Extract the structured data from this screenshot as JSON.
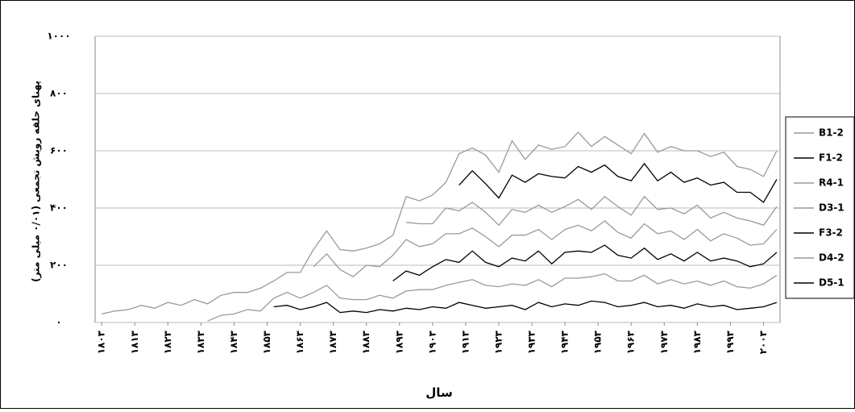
{
  "chart_data": {
    "type": "line",
    "stacked": true,
    "y_title": "پهنای حلقه رویش تجمعی (۰/۰۱ میلی متر)",
    "x_title": "سال",
    "x": [
      1803,
      1807,
      1811,
      1815,
      1819,
      1823,
      1827,
      1831,
      1835,
      1839,
      1843,
      1847,
      1851,
      1855,
      1859,
      1863,
      1867,
      1871,
      1875,
      1879,
      1883,
      1887,
      1891,
      1895,
      1899,
      1903,
      1907,
      1911,
      1915,
      1919,
      1923,
      1927,
      1931,
      1935,
      1939,
      1943,
      1947,
      1951,
      1955,
      1959,
      1963,
      1967,
      1971,
      1975,
      1979,
      1983,
      1987,
      1991,
      1995,
      1999,
      2003,
      2007
    ],
    "xlim": [
      1801,
      2008
    ],
    "xticks": [
      {
        "value": 1803,
        "label": "۱۸۰۳"
      },
      {
        "value": 1813,
        "label": "۱۸۱۳"
      },
      {
        "value": 1823,
        "label": "۱۸۲۳"
      },
      {
        "value": 1833,
        "label": "۱۸۳۳"
      },
      {
        "value": 1843,
        "label": "۱۸۴۳"
      },
      {
        "value": 1853,
        "label": "۱۸۵۳"
      },
      {
        "value": 1863,
        "label": "۱۸۶۳"
      },
      {
        "value": 1873,
        "label": "۱۸۷۳"
      },
      {
        "value": 1883,
        "label": "۱۸۸۳"
      },
      {
        "value": 1893,
        "label": "۱۸۹۳"
      },
      {
        "value": 1903,
        "label": "۱۹۰۳"
      },
      {
        "value": 1913,
        "label": "۱۹۱۳"
      },
      {
        "value": 1923,
        "label": "۱۹۲۳"
      },
      {
        "value": 1933,
        "label": "۱۹۳۳"
      },
      {
        "value": 1943,
        "label": "۱۹۴۳"
      },
      {
        "value": 1953,
        "label": "۱۹۵۳"
      },
      {
        "value": 1963,
        "label": "۱۹۶۳"
      },
      {
        "value": 1973,
        "label": "۱۹۷۳"
      },
      {
        "value": 1983,
        "label": "۱۹۸۳"
      },
      {
        "value": 1993,
        "label": "۱۹۹۳"
      },
      {
        "value": 2003,
        "label": "۲۰۰۳"
      }
    ],
    "ylim": [
      0,
      1000
    ],
    "yticks": [
      {
        "value": 0,
        "label": "۰"
      },
      {
        "value": 200,
        "label": "۲۰۰"
      },
      {
        "value": 400,
        "label": "۴۰۰"
      },
      {
        "value": 600,
        "label": "۶۰۰"
      },
      {
        "value": 800,
        "label": "۸۰۰"
      },
      {
        "value": 1000,
        "label": "۱۰۰۰"
      }
    ],
    "grid": true,
    "legend": "right",
    "series": [
      {
        "name": "B1-2",
        "color": "#9a9a9a",
        "values": [
          30,
          40,
          45,
          60,
          50,
          70,
          60,
          80,
          60,
          70,
          75,
          60,
          80,
          60,
          70,
          90,
          60,
          80,
          70,
          90,
          60,
          80,
          70,
          90,
          80,
          100,
          90,
          110,
          80,
          100,
          90,
          120,
          80,
          100,
          95,
          110,
          120,
          90,
          100,
          110,
          95,
          105,
          100,
          90,
          110,
          95,
          100,
          105,
          90,
          80,
          90,
          100
        ]
      },
      {
        "name": "F1-2",
        "color": "#000000",
        "values": [
          null,
          null,
          null,
          null,
          null,
          null,
          null,
          null,
          null,
          null,
          null,
          null,
          null,
          null,
          null,
          null,
          null,
          null,
          null,
          null,
          null,
          null,
          null,
          null,
          null,
          null,
          null,
          90,
          110,
          100,
          95,
          120,
          105,
          110,
          125,
          100,
          115,
          130,
          110,
          105,
          120,
          115,
          100,
          125,
          110,
          95,
          115,
          105,
          90,
          100,
          80,
          95
        ]
      },
      {
        "name": "R4-1",
        "color": "#9a9a9a",
        "values": [
          null,
          null,
          null,
          null,
          null,
          null,
          null,
          null,
          null,
          null,
          null,
          null,
          null,
          null,
          null,
          null,
          null,
          null,
          null,
          null,
          null,
          null,
          null,
          60,
          80,
          70,
          90,
          80,
          90,
          85,
          75,
          90,
          80,
          85,
          95,
          80,
          90,
          75,
          85,
          90,
          80,
          95,
          85,
          80,
          90,
          85,
          80,
          75,
          70,
          85,
          65,
          80
        ]
      },
      {
        "name": "D3-1",
        "color": "#9a9a9a",
        "values": [
          null,
          null,
          null,
          null,
          null,
          null,
          null,
          null,
          null,
          null,
          null,
          null,
          null,
          null,
          null,
          null,
          90,
          110,
          100,
          80,
          120,
          100,
          90,
          110,
          100,
          80,
          90,
          100,
          80,
          90,
          70,
          80,
          90,
          75,
          85,
          80,
          90,
          75,
          85,
          80,
          70,
          85,
          90,
          80,
          75,
          80,
          70,
          85,
          80,
          75,
          70,
          80
        ]
      },
      {
        "name": "F3-2",
        "color": "#000000",
        "values": [
          null,
          null,
          null,
          null,
          null,
          null,
          null,
          null,
          null,
          null,
          null,
          null,
          null,
          null,
          null,
          null,
          null,
          null,
          null,
          null,
          null,
          null,
          60,
          70,
          50,
          80,
          90,
          70,
          100,
          80,
          70,
          90,
          85,
          100,
          80,
          90,
          95,
          85,
          100,
          90,
          80,
          95,
          85,
          90,
          80,
          100,
          85,
          80,
          90,
          75,
          70,
          80
        ]
      },
      {
        "name": "D4-2",
        "color": "#9a9a9a",
        "values": [
          null,
          null,
          null,
          null,
          null,
          null,
          null,
          null,
          5,
          25,
          30,
          45,
          40,
          30,
          45,
          40,
          50,
          60,
          50,
          40,
          45,
          50,
          45,
          60,
          70,
          60,
          80,
          70,
          90,
          80,
          70,
          75,
          85,
          80,
          70,
          90,
          95,
          85,
          100,
          90,
          85,
          95,
          80,
          90,
          85,
          80,
          75,
          85,
          80,
          70,
          80,
          95
        ]
      },
      {
        "name": "D5-1",
        "color": "#000000",
        "values": [
          null,
          null,
          null,
          null,
          null,
          null,
          null,
          null,
          null,
          null,
          null,
          null,
          null,
          55,
          60,
          45,
          55,
          70,
          35,
          40,
          35,
          45,
          40,
          50,
          45,
          55,
          50,
          70,
          60,
          50,
          55,
          60,
          45,
          70,
          55,
          65,
          60,
          75,
          70,
          55,
          60,
          70,
          55,
          60,
          50,
          65,
          55,
          60,
          45,
          50,
          55,
          70
        ]
      }
    ]
  }
}
